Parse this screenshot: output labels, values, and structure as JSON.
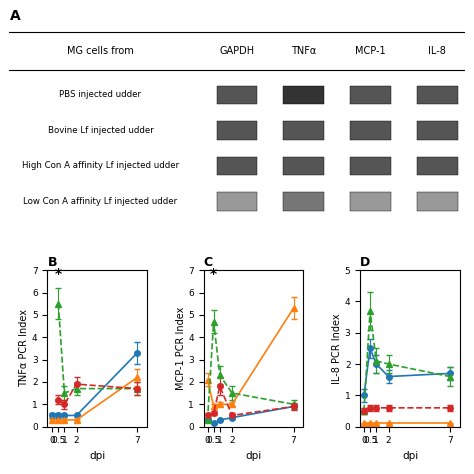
{
  "chart_data": [
    {
      "type": "table",
      "title": "A",
      "columns": [
        "MG cells from",
        "GAPDH",
        "TNFα",
        "MCP-1",
        "IL-8"
      ],
      "rows": [
        "PBS injected udder",
        "Bovine Lf injected udder",
        "High Con A affinity Lf injected udder",
        "Low Con A affinity Lf injected udder"
      ],
      "colors": [
        [
          "#555555",
          "#333333",
          "#555555",
          "#555555"
        ],
        [
          "#555555",
          "#555555",
          "#555555",
          "#555555"
        ],
        [
          "#555555",
          "#555555",
          "#555555",
          "#555555"
        ],
        [
          "#999999",
          "#777777",
          "#999999",
          "#999999"
        ]
      ]
    },
    {
      "type": "line",
      "title": "B",
      "x_label": "dpi",
      "y_label": "TNFα PCR Index",
      "x": [
        0,
        0.5,
        1,
        2,
        7
      ],
      "xlim": [
        -0.4,
        7.8
      ],
      "xticks": [
        0,
        0.5,
        1,
        2,
        7
      ],
      "ylim": [
        0,
        7
      ],
      "yticks": [
        0,
        1,
        2,
        3,
        4,
        5,
        6,
        7
      ],
      "series": [
        {
          "values": [
            0.5,
            0.5,
            0.5,
            0.5,
            3.3
          ],
          "errors": [
            0.1,
            0.1,
            0.05,
            0.05,
            0.5
          ],
          "marker": "circle",
          "line_style": "solid"
        },
        {
          "values": [
            0.3,
            0.3,
            0.3,
            0.3,
            2.2
          ],
          "errors": [
            0.05,
            0.05,
            0.05,
            0.05,
            0.4
          ],
          "marker": "triangle",
          "line_style": "solid"
        },
        {
          "values": [
            null,
            5.5,
            1.5,
            1.7,
            1.7
          ],
          "errors": [
            null,
            0.7,
            0.3,
            0.3,
            0.3
          ],
          "marker": "triangle",
          "line_style": "dashed"
        },
        {
          "values": [
            null,
            1.2,
            1.0,
            1.9,
            1.7
          ],
          "errors": [
            null,
            0.2,
            0.2,
            0.3,
            0.3
          ],
          "marker": "circle",
          "line_style": "dashed"
        }
      ],
      "annotations": [
        {
          "text": "*",
          "x": 0.5,
          "y": 6.5
        }
      ]
    },
    {
      "type": "line",
      "title": "C",
      "x_label": "dpi",
      "y_label": "MCP-1 PCR Index",
      "x": [
        0,
        0.5,
        1,
        2,
        7
      ],
      "xlim": [
        -0.3,
        7.8
      ],
      "xticks": [
        0,
        0.5,
        1,
        2,
        7
      ],
      "ylim": [
        0,
        7
      ],
      "yticks": [
        0,
        1,
        2,
        3,
        4,
        5,
        6,
        7
      ],
      "series": [
        {
          "values": [
            0.3,
            0.15,
            0.3,
            0.4,
            0.9
          ],
          "errors": [
            0.1,
            0.05,
            0.05,
            0.05,
            0.1
          ],
          "marker": "circle",
          "line_style": "solid"
        },
        {
          "values": [
            2.1,
            0.9,
            1.0,
            1.0,
            5.3
          ],
          "errors": [
            0.3,
            0.1,
            0.1,
            0.1,
            0.5
          ],
          "marker": "triangle",
          "line_style": "solid"
        },
        {
          "values": [
            0.3,
            4.7,
            2.3,
            1.5,
            1.0
          ],
          "errors": [
            0.05,
            0.5,
            0.4,
            0.3,
            0.2
          ],
          "marker": "triangle",
          "line_style": "dashed"
        },
        {
          "values": [
            0.5,
            0.6,
            1.8,
            0.5,
            0.9
          ],
          "errors": [
            0.1,
            0.1,
            0.4,
            0.1,
            0.15
          ],
          "marker": "circle",
          "line_style": "dashed"
        }
      ],
      "annotations": [
        {
          "text": "*",
          "x": 0.5,
          "y": 6.5
        }
      ]
    },
    {
      "type": "line",
      "title": "D",
      "x_label": "dpi",
      "y_label": "IL-8 PCR Index",
      "x": [
        0,
        0.5,
        1,
        2,
        7
      ],
      "xlim": [
        -0.3,
        7.8
      ],
      "xticks": [
        0,
        0.5,
        1,
        2,
        7
      ],
      "ylim": [
        0,
        5
      ],
      "yticks": [
        0,
        1,
        2,
        3,
        4,
        5
      ],
      "series": [
        {
          "values": [
            1.0,
            2.5,
            2.0,
            1.6,
            1.7
          ],
          "errors": [
            0.2,
            0.3,
            0.3,
            0.2,
            0.2
          ],
          "marker": "circle",
          "line_style": "solid"
        },
        {
          "values": [
            0.1,
            0.1,
            0.1,
            0.1,
            0.1
          ],
          "errors": [
            0.02,
            0.02,
            0.02,
            0.02,
            0.02
          ],
          "marker": "triangle",
          "line_style": "solid"
        },
        {
          "values": [
            0.5,
            3.7,
            2.1,
            2.0,
            1.6
          ],
          "errors": [
            0.1,
            0.6,
            0.4,
            0.3,
            0.3
          ],
          "marker": "triangle",
          "line_style": "dashed"
        },
        {
          "values": [
            0.5,
            0.6,
            0.6,
            0.6,
            0.6
          ],
          "errors": [
            0.1,
            0.1,
            0.1,
            0.1,
            0.1
          ],
          "marker": "circle",
          "line_style": "dashed"
        }
      ]
    }
  ]
}
